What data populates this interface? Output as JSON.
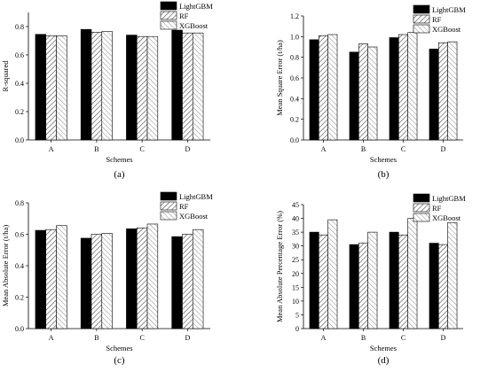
{
  "pattern_colors": {
    "lightgbm": "#000000",
    "rf_hatch": "#555555",
    "xgboost_hatch": "#777777",
    "axis": "#000000"
  },
  "chart_data": [
    {
      "panel_label": "(a)",
      "type": "bar",
      "categories": [
        "A",
        "B",
        "C",
        "D"
      ],
      "series": [
        {
          "name": "LightGBM",
          "values": [
            0.745,
            0.78,
            0.74,
            0.775
          ]
        },
        {
          "name": "RF",
          "values": [
            0.735,
            0.76,
            0.73,
            0.755
          ]
        },
        {
          "name": "XGBoost",
          "values": [
            0.735,
            0.765,
            0.73,
            0.755
          ]
        }
      ],
      "xlabel": "Schemes",
      "ylabel": "R-squared",
      "ylim": [
        0,
        0.9
      ],
      "yticks": [
        "0.0",
        "0.2",
        "0.4",
        "0.6",
        "0.8"
      ],
      "legend": "top-right",
      "grid": false
    },
    {
      "panel_label": "(b)",
      "type": "bar",
      "categories": [
        "A",
        "B",
        "C",
        "D"
      ],
      "series": [
        {
          "name": "LightGBM",
          "values": [
            0.97,
            0.85,
            0.99,
            0.88
          ]
        },
        {
          "name": "RF",
          "values": [
            1.01,
            0.93,
            1.02,
            0.94
          ]
        },
        {
          "name": "XGBoost",
          "values": [
            1.02,
            0.9,
            1.04,
            0.95
          ]
        }
      ],
      "xlabel": "Schemes",
      "ylabel": "Mean Square Error (t/ha)",
      "ylim": [
        0,
        1.2
      ],
      "yticks": [
        "0.0",
        "0.2",
        "0.4",
        "0.6",
        "0.8",
        "1.0",
        "1.2"
      ],
      "legend": "top-right",
      "grid": false
    },
    {
      "panel_label": "(c)",
      "type": "bar",
      "categories": [
        "A",
        "B",
        "C",
        "D"
      ],
      "series": [
        {
          "name": "LightGBM",
          "values": [
            0.625,
            0.575,
            0.635,
            0.585
          ]
        },
        {
          "name": "RF",
          "values": [
            0.63,
            0.6,
            0.64,
            0.6
          ]
        },
        {
          "name": "XGBoost",
          "values": [
            0.655,
            0.605,
            0.665,
            0.63
          ]
        }
      ],
      "xlabel": "Schemes",
      "ylabel": "Mean Absolute Error (t/ha)",
      "ylim": [
        0,
        0.8
      ],
      "yticks": [
        "0.0",
        "0.2",
        "0.4",
        "0.6",
        "0.8"
      ],
      "legend": "top-right",
      "grid": false
    },
    {
      "panel_label": "(d)",
      "type": "bar",
      "categories": [
        "A",
        "B",
        "C",
        "D"
      ],
      "series": [
        {
          "name": "LightGBM",
          "values": [
            35.0,
            30.5,
            35.0,
            31.0
          ]
        },
        {
          "name": "RF",
          "values": [
            34.0,
            31.0,
            34.0,
            30.5
          ]
        },
        {
          "name": "XGBoost",
          "values": [
            39.5,
            35.0,
            40.0,
            38.5
          ]
        }
      ],
      "xlabel": "Schemes",
      "ylabel": "Mean Absolute Percentage Error (%)",
      "ylim": [
        0,
        45
      ],
      "yticks": [
        "0",
        "5",
        "10",
        "15",
        "20",
        "25",
        "30",
        "35",
        "40",
        "45"
      ],
      "legend": "top-right",
      "grid": false
    }
  ]
}
